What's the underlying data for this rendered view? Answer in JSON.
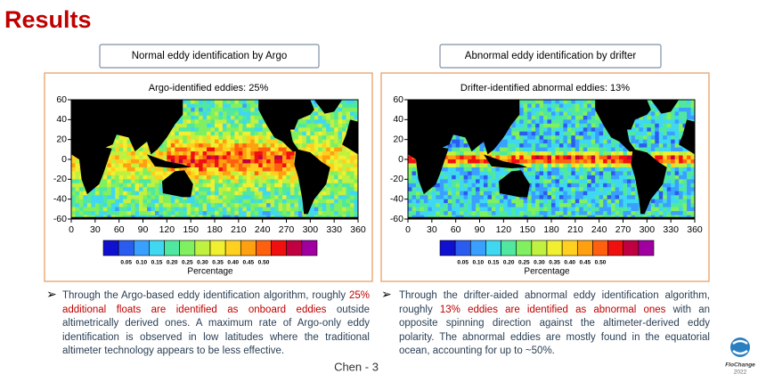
{
  "title": "Results",
  "panels": [
    {
      "header": "Normal eddy identification by Argo",
      "map_title": "Argo-identified eddies: 25%",
      "y_ticks": [
        "60",
        "40",
        "20",
        "0",
        "-20",
        "-40",
        "-60"
      ],
      "x_ticks": [
        "0",
        "30",
        "60",
        "90",
        "120",
        "150",
        "180",
        "210",
        "240",
        "270",
        "300",
        "330",
        "360"
      ],
      "colorbar_labels": [
        "0.05",
        "0.10",
        "0.15",
        "0.20",
        "0.25",
        "0.30",
        "0.35",
        "0.40",
        "0.45",
        "0.50"
      ],
      "colorbar_title": "Percentage",
      "bullet": [
        {
          "text": "Through the Argo-based eddy identification algorithm, roughly "
        },
        {
          "text": "25% additional floats are identified as onboard eddies",
          "color": "#c00000"
        },
        {
          "text": " outside altimetrically derived ones. A maximum rate of Argo-only eddy identification is observed in low latitudes where the traditional altimeter technology appears to be less effective."
        }
      ]
    },
    {
      "header": "Abnormal eddy identification by drifter",
      "map_title": "Drifter-identified abnormal eddies: 13%",
      "y_ticks": [
        "60",
        "40",
        "20",
        "0",
        "-20",
        "-40",
        "-60"
      ],
      "x_ticks": [
        "0",
        "30",
        "60",
        "90",
        "120",
        "150",
        "180",
        "210",
        "240",
        "270",
        "300",
        "330",
        "360"
      ],
      "colorbar_labels": [
        "0.05",
        "0.10",
        "0.15",
        "0.20",
        "0.25",
        "0.30",
        "0.35",
        "0.40",
        "0.45",
        "0.50"
      ],
      "colorbar_title": "Percentage",
      "bullet": [
        {
          "text": "Through the drifter-aided abnormal eddy identification algorithm, roughly "
        },
        {
          "text": "13% eddies are identified as abnormal ones",
          "color": "#c00000"
        },
        {
          "text": " with an opposite spinning direction against the altimeter-derived eddy polarity. The abnormal eddies are mostly found in the equatorial ocean, accounting for up to ~50%."
        }
      ]
    }
  ],
  "footer": "Chen - 3",
  "logo": {
    "name": "FloChange",
    "year": "2022"
  }
}
